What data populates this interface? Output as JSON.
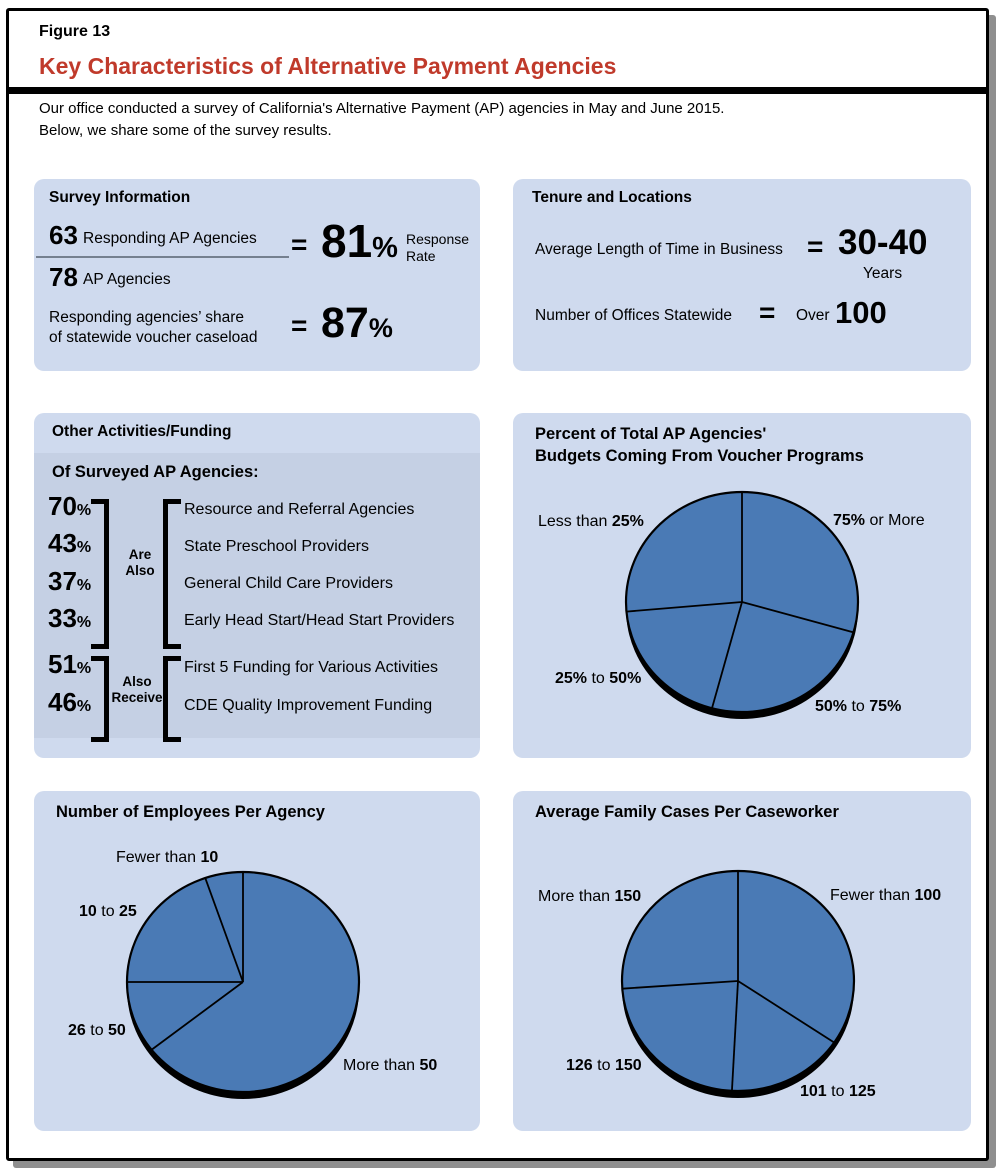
{
  "figure": {
    "label": "Figure 13",
    "title": "Key Characteristics of Alternative Payment Agencies",
    "intro_line1": "Our office conducted a survey of California's Alternative Payment (AP) agencies in May and June 2015.",
    "intro_line2": "Below, we share some of the survey results."
  },
  "colors": {
    "accent_red": "#c03a2b",
    "panel_bg": "#cfdaee",
    "panel_inner_bg": "#c5d0e4",
    "pie_fill": "#4a7ab5",
    "pie_stroke": "#000000",
    "frame_shadow": "#8f8f8f"
  },
  "survey_info": {
    "title": "Survey Information",
    "numerator_value": "63",
    "numerator_label": "Responding AP Agencies",
    "denominator_value": "78",
    "denominator_label": "AP Agencies",
    "equals": "=",
    "rate_value": "81",
    "rate_percent_sign": "%",
    "rate_label_line1": "Response",
    "rate_label_line2": "Rate",
    "share_label_line1": "Responding agencies’ share",
    "share_label_line2": "of statewide voucher caseload",
    "share_equals": "=",
    "share_value": "87",
    "share_percent_sign": "%"
  },
  "tenure": {
    "title": "Tenure and Locations",
    "row1_label": "Average Length of Time in Business",
    "row1_equals": "=",
    "row1_value": "30-40",
    "row1_unit": "Years",
    "row2_label": "Number of Offices Statewide",
    "row2_equals": "=",
    "row2_prefix": "Over",
    "row2_value": "100"
  },
  "other_activities": {
    "title": "Other Activities/Funding",
    "subtitle": "Of Surveyed AP Agencies:",
    "percent_sign": "%",
    "group1": {
      "connector_line1": "Are",
      "connector_line2": "Also",
      "rows": [
        {
          "pct": "70",
          "label": "Resource and Referral Agencies"
        },
        {
          "pct": "43",
          "label": "State Preschool Providers"
        },
        {
          "pct": "37",
          "label": "General Child Care Providers"
        },
        {
          "pct": "33",
          "label": "Early Head Start/Head Start Providers"
        }
      ]
    },
    "group2": {
      "connector_line1": "Also",
      "connector_line2": "Receive",
      "rows": [
        {
          "pct": "51",
          "label": "First 5 Funding for Various Activities"
        },
        {
          "pct": "46",
          "label": "CDE Quality Improvement Funding"
        }
      ]
    }
  },
  "chart_data": [
    {
      "type": "pie",
      "title": "Percent of Total AP Agencies' Budgets Coming From Voucher Programs",
      "title_line1": "Percent of Total AP Agencies'",
      "title_line2": "Budgets Coming From Voucher Programs",
      "start": "12 o'clock, clockwise",
      "single_color": true,
      "slices": [
        {
          "label": "75% or More",
          "angle_deg": 106,
          "share_pct_est": 29,
          "label_parts": [
            {
              "t": "75%",
              "b": true
            },
            {
              "t": " or More",
              "b": false
            }
          ]
        },
        {
          "label": "50% to 75%",
          "angle_deg": 89,
          "share_pct_est": 25,
          "label_parts": [
            {
              "t": "50%",
              "b": true
            },
            {
              "t": " to ",
              "b": false
            },
            {
              "t": "75%",
              "b": true
            }
          ]
        },
        {
          "label": "25% to 50%",
          "angle_deg": 70,
          "share_pct_est": 19,
          "label_parts": [
            {
              "t": "25%",
              "b": true
            },
            {
              "t": " to ",
              "b": false
            },
            {
              "t": "50%",
              "b": true
            }
          ]
        },
        {
          "label": "Less than 25%",
          "angle_deg": 95,
          "share_pct_est": 26,
          "label_parts": [
            {
              "t": "Less than ",
              "b": false
            },
            {
              "t": "25%",
              "b": true
            }
          ]
        }
      ]
    },
    {
      "type": "pie",
      "title": "Number of Employees Per Agency",
      "start": "12 o'clock, clockwise",
      "single_color": true,
      "slices": [
        {
          "label": "More than 50",
          "angle_deg": 232,
          "share_pct_est": 64,
          "label_parts": [
            {
              "t": "More than ",
              "b": false
            },
            {
              "t": "50",
              "b": true
            }
          ]
        },
        {
          "label": "26 to 50",
          "angle_deg": 38,
          "share_pct_est": 11,
          "label_parts": [
            {
              "t": "26",
              "b": true
            },
            {
              "t": " to ",
              "b": false
            },
            {
              "t": "50",
              "b": true
            }
          ]
        },
        {
          "label": "10 to 25",
          "angle_deg": 71,
          "share_pct_est": 20,
          "label_parts": [
            {
              "t": "10",
              "b": true
            },
            {
              "t": " to ",
              "b": false
            },
            {
              "t": "25",
              "b": true
            }
          ]
        },
        {
          "label": "Fewer than 10",
          "angle_deg": 19,
          "share_pct_est": 5,
          "label_parts": [
            {
              "t": "Fewer than ",
              "b": false
            },
            {
              "t": "10",
              "b": true
            }
          ]
        }
      ]
    },
    {
      "type": "pie",
      "title": "Average Family Cases Per Caseworker",
      "start": "12 o'clock, clockwise",
      "single_color": true,
      "slices": [
        {
          "label": "Fewer than 100",
          "angle_deg": 124,
          "share_pct_est": 34,
          "label_parts": [
            {
              "t": "Fewer than ",
              "b": false
            },
            {
              "t": "100",
              "b": true
            }
          ]
        },
        {
          "label": "101 to 125",
          "angle_deg": 59,
          "share_pct_est": 16,
          "label_parts": [
            {
              "t": "101",
              "b": true
            },
            {
              "t": " to ",
              "b": false
            },
            {
              "t": "125",
              "b": true
            }
          ]
        },
        {
          "label": "126 to 150",
          "angle_deg": 83,
          "share_pct_est": 23,
          "label_parts": [
            {
              "t": "126",
              "b": true
            },
            {
              "t": " to ",
              "b": false
            },
            {
              "t": "150",
              "b": true
            }
          ]
        },
        {
          "label": "More than 150",
          "angle_deg": 94,
          "share_pct_est": 27,
          "label_parts": [
            {
              "t": "More than ",
              "b": false
            },
            {
              "t": "150",
              "b": true
            }
          ]
        }
      ]
    }
  ]
}
